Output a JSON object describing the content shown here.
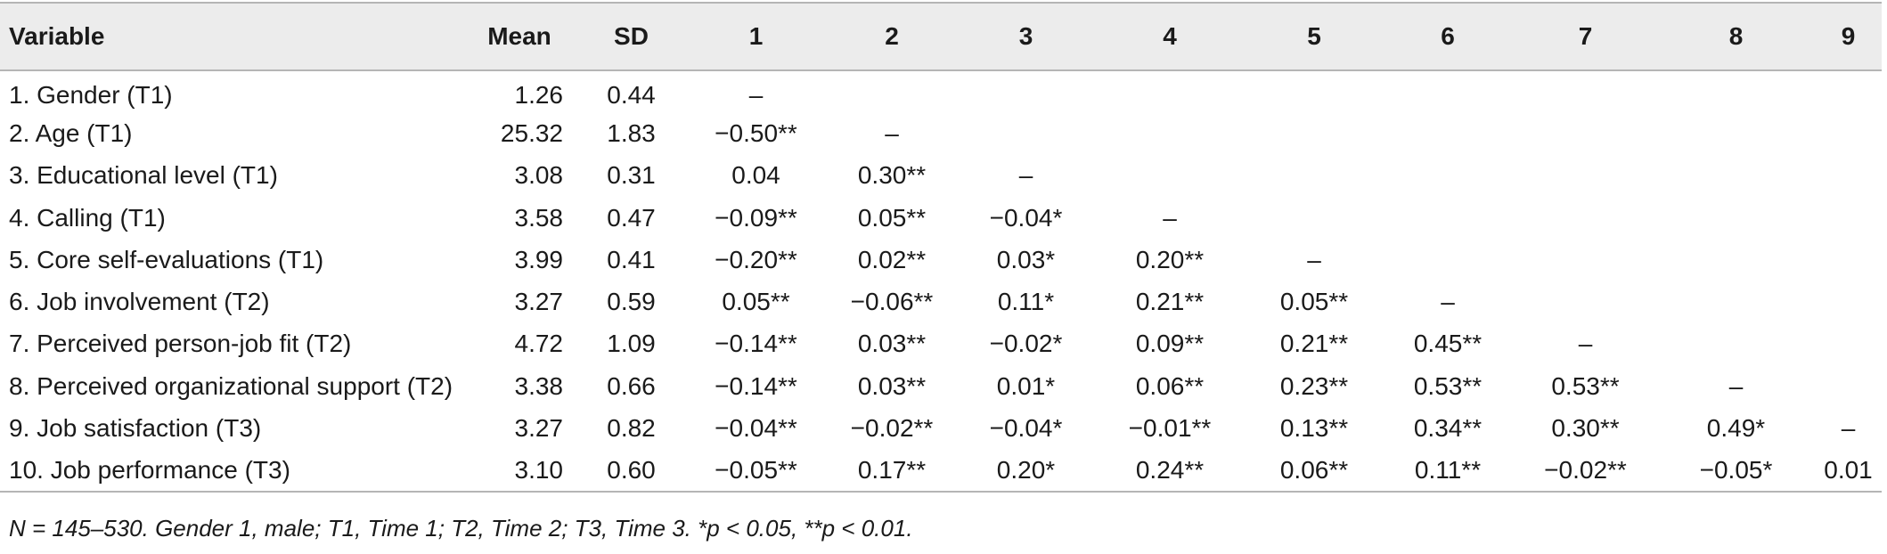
{
  "table": {
    "headers": [
      "Variable",
      "Mean",
      "SD",
      "1",
      "2",
      "3",
      "4",
      "5",
      "6",
      "7",
      "8",
      "9"
    ],
    "rows": [
      [
        "1. Gender (T1)",
        "1.26",
        "0.44",
        "–",
        "",
        "",
        "",
        "",
        "",
        "",
        "",
        ""
      ],
      [
        "2. Age (T1)",
        "25.32",
        "1.83",
        "−0.50**",
        "–",
        "",
        "",
        "",
        "",
        "",
        "",
        ""
      ],
      [
        "3. Educational level (T1)",
        "3.08",
        "0.31",
        "0.04",
        "0.30**",
        "–",
        "",
        "",
        "",
        "",
        "",
        ""
      ],
      [
        "4. Calling (T1)",
        "3.58",
        "0.47",
        "−0.09**",
        "0.05**",
        "−0.04*",
        "–",
        "",
        "",
        "",
        "",
        ""
      ],
      [
        "5. Core self-evaluations (T1)",
        "3.99",
        "0.41",
        "−0.20**",
        "0.02**",
        "0.03*",
        "0.20**",
        "–",
        "",
        "",
        "",
        ""
      ],
      [
        "6. Job involvement (T2)",
        "3.27",
        "0.59",
        "0.05**",
        "−0.06**",
        "0.11*",
        "0.21**",
        "0.05**",
        "–",
        "",
        "",
        ""
      ],
      [
        "7. Perceived person-job fit (T2)",
        "4.72",
        "1.09",
        "−0.14**",
        "0.03**",
        "−0.02*",
        "0.09**",
        "0.21**",
        "0.45**",
        "–",
        "",
        ""
      ],
      [
        "8. Perceived organizational support (T2)",
        "3.38",
        "0.66",
        "−0.14**",
        "0.03**",
        "0.01*",
        "0.06**",
        "0.23**",
        "0.53**",
        "0.53**",
        "–",
        ""
      ],
      [
        "9. Job satisfaction (T3)",
        "3.27",
        "0.82",
        "−0.04**",
        "−0.02**",
        "−0.04*",
        "−0.01**",
        "0.13**",
        "0.34**",
        "0.30**",
        "0.49*",
        "–"
      ],
      [
        "10. Job performance (T3)",
        "3.10",
        "0.60",
        "−0.05**",
        "0.17**",
        "0.20*",
        "0.24**",
        "0.06**",
        "0.11**",
        "−0.02**",
        "−0.05*",
        "0.01"
      ]
    ]
  },
  "note": "N = 145–530. Gender 1, male; T1, Time 1; T2, Time 2; T3, Time 3. *p < 0.05, **p < 0.01."
}
